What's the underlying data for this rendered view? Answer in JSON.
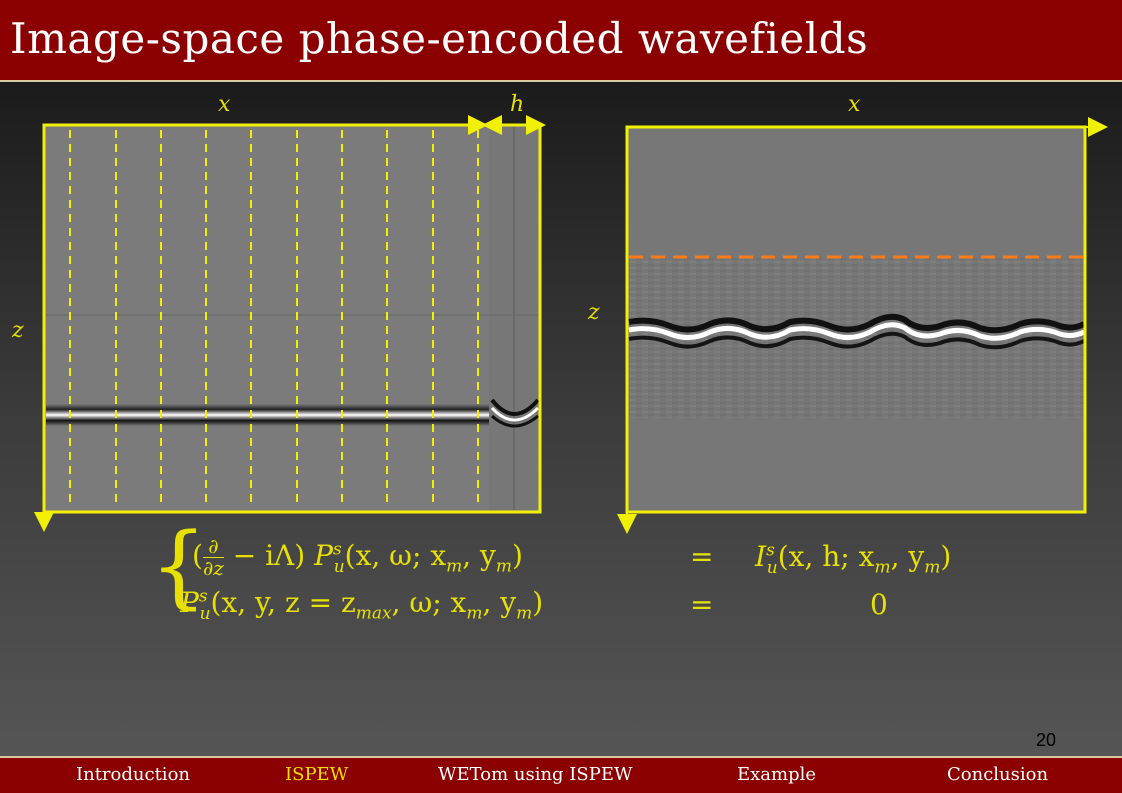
{
  "slide": {
    "title": "Image-space phase-encoded wavefields",
    "page_number": "20"
  },
  "left_panel": {
    "x_label": "x",
    "h_label": "h",
    "z_label": "z"
  },
  "right_panel": {
    "x_label": "x",
    "z_label": "z"
  },
  "equation": {
    "line1_lhs_parts": [
      "(",
      "∂",
      "∂z",
      "− iΛ)",
      "P",
      "u",
      "s",
      "(x, ω; x",
      "m",
      ", y",
      "m",
      ")"
    ],
    "line1_eq": "=",
    "line1_rhs": "I",
    "line1_rhs_sub": "u",
    "line1_rhs_sup": "s",
    "line1_rhs_args": "(x, h; x",
    "line2_lhs": "P",
    "line2_sub": "u",
    "line2_sup": "s",
    "line2_args": "(x, y, z = z",
    "line2_zsub": "max",
    "line2_args2": ", ω; x",
    "line2_eq": "=",
    "line2_rhs": "0"
  },
  "colors": {
    "title_bar": "#8b0000",
    "accent": "#e8e000",
    "orange_line": "#ff7a1a",
    "panel_gray": "#7a7a7a"
  },
  "footer": {
    "items": [
      {
        "label": "Introduction",
        "active": false
      },
      {
        "label": "ISPEW",
        "active": true
      },
      {
        "label": "WETom using ISPEW",
        "active": false
      },
      {
        "label": "Example",
        "active": false
      },
      {
        "label": "Conclusion",
        "active": false
      }
    ]
  }
}
